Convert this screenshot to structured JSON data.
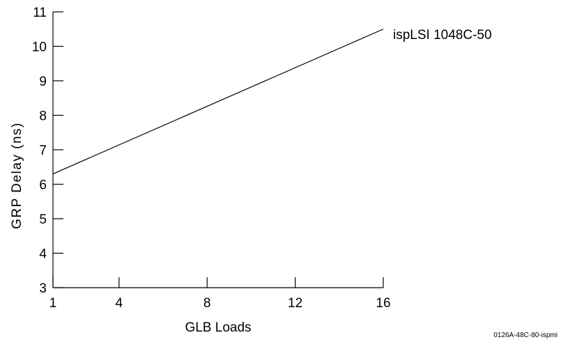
{
  "chart_data": {
    "type": "line",
    "title": "",
    "xlabel": "GLB Loads",
    "ylabel": "GRP Delay (ns)",
    "xlim": [
      1,
      16
    ],
    "ylim": [
      3,
      11
    ],
    "xticks": [
      1,
      4,
      8,
      12,
      16
    ],
    "yticks": [
      3,
      4,
      5,
      6,
      7,
      8,
      9,
      10,
      11
    ],
    "grid": false,
    "series": [
      {
        "name": "ispLSI 1048C-50",
        "x": [
          1,
          16
        ],
        "y": [
          6.3,
          10.5
        ]
      }
    ],
    "annotations": [
      "0126A-48C-80-ispmi"
    ],
    "colors": {
      "line": "#000000",
      "axis": "#000000",
      "background": "#ffffff"
    }
  }
}
